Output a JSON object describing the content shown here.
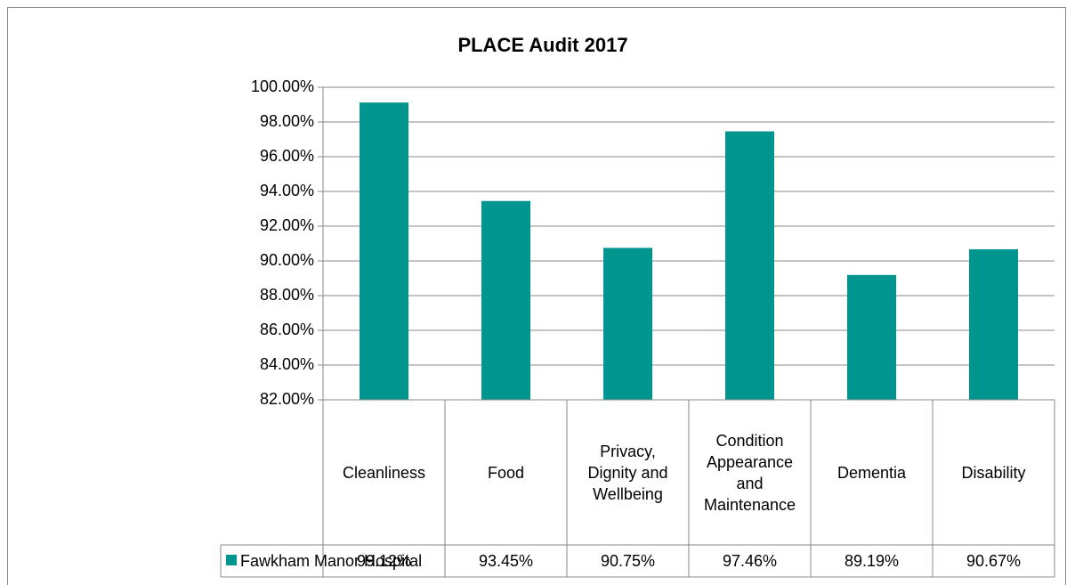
{
  "chart_data": {
    "type": "bar",
    "title": "PLACE  Audit 2017",
    "categories": [
      "Cleanliness",
      "Food",
      "Privacy, Dignity and Wellbeing",
      "Condition Appearance and Maintenance",
      "Dementia",
      "Disability"
    ],
    "series": [
      {
        "name": "Fawkham Manor Hospital",
        "color": "#00968f",
        "values": [
          99.12,
          93.45,
          90.75,
          97.46,
          89.19,
          90.67
        ],
        "value_labels": [
          "99.12%",
          "93.45%",
          "90.75%",
          "97.46%",
          "89.19%",
          "90.67%"
        ]
      }
    ],
    "ylim": [
      82,
      100
    ],
    "yticks": [
      {
        "value": 82,
        "label": "82.00%"
      },
      {
        "value": 84,
        "label": "84.00%"
      },
      {
        "value": 86,
        "label": "86.00%"
      },
      {
        "value": 88,
        "label": "88.00%"
      },
      {
        "value": 90,
        "label": "90.00%"
      },
      {
        "value": 92,
        "label": "92.00%"
      },
      {
        "value": 94,
        "label": "94.00%"
      },
      {
        "value": 96,
        "label": "96.00%"
      },
      {
        "value": 98,
        "label": "98.00%"
      },
      {
        "value": 100,
        "label": "100.00%"
      }
    ],
    "grid": true,
    "legend": "data-table"
  }
}
